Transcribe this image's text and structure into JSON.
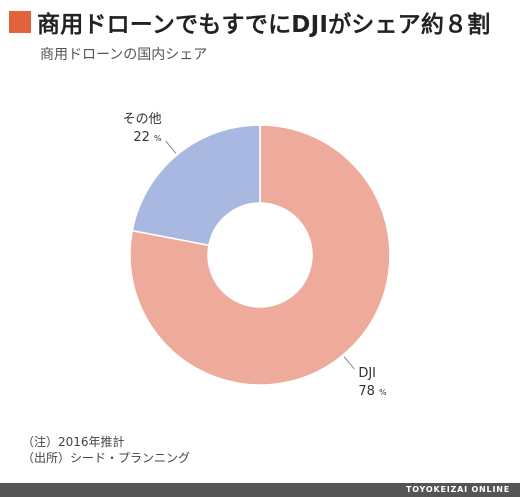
{
  "header": {
    "title": "商用ドローンでもすでにDJIがシェア約８割",
    "subtitle": "商用ドローンの国内シェア",
    "accent_color": "#e0633d"
  },
  "chart_data": {
    "type": "pie",
    "donut": true,
    "start": "12 o'clock, clockwise",
    "slices": [
      {
        "label": "DJI",
        "value": 78,
        "unit": "%",
        "color": "#eeab9c"
      },
      {
        "label": "その他",
        "value": 22,
        "unit": "%",
        "color": "#a9b8e0"
      }
    ]
  },
  "footnotes": {
    "note": "（注）2016年推計",
    "source": "（出所）シード・プランニング"
  },
  "footer": {
    "brand": "TOYOKEIZAI ONLINE"
  }
}
